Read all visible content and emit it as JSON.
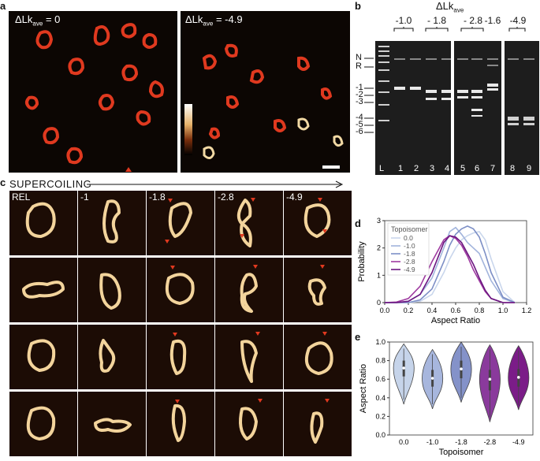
{
  "panel_a": {
    "letter": "a",
    "left_label_prefix": "ΔLk",
    "left_label_sub": "ave",
    "left_label_value": " = 0",
    "right_label_prefix": "ΔLk",
    "right_label_sub": "ave",
    "right_label_value": " = -4.9"
  },
  "panel_b": {
    "letter": "b",
    "title_prefix": "ΔLk",
    "title_sub": "ave",
    "group_labels": [
      "-1.0",
      "- 1.8",
      "- 2.8",
      "-1.6",
      "-4.9"
    ],
    "band_labels": [
      "N",
      "R",
      "-1",
      "-2",
      "-3",
      "-4",
      "-5",
      "-6"
    ],
    "lane_labels": [
      "L",
      "1",
      "2",
      "3",
      "4",
      "5",
      "6",
      "7",
      "8",
      "9"
    ]
  },
  "panel_c": {
    "letter": "c",
    "header": "SUPERCOILING",
    "column_labels": [
      "REL",
      "-1",
      "-1.8",
      "-2.8",
      "-4.9"
    ]
  },
  "panel_d": {
    "letter": "d",
    "legend_title": "Topoisomer",
    "xlabel": "Aspect Ratio",
    "ylabel": "Probability",
    "x_ticks": [
      "0.0",
      "0.2",
      "0.4",
      "0.6",
      "0.8",
      "1.0",
      "1.2"
    ],
    "y_ticks": [
      "0",
      "1",
      "2",
      "3"
    ]
  },
  "panel_e": {
    "letter": "e",
    "xlabel": "Topoisomer",
    "ylabel": "Aspect Ratio",
    "y_ticks": [
      "0.0",
      "0.2",
      "0.4",
      "0.6",
      "0.8",
      "1.0"
    ]
  },
  "chart_data": [
    {
      "type": "line",
      "xlabel": "Aspect Ratio",
      "ylabel": "Probability",
      "xlim": [
        0.0,
        1.2
      ],
      "ylim": [
        0,
        3
      ],
      "x": [
        0.0,
        0.1,
        0.2,
        0.3,
        0.4,
        0.5,
        0.55,
        0.6,
        0.65,
        0.7,
        0.75,
        0.8,
        0.85,
        0.9,
        1.0,
        1.1
      ],
      "series": [
        {
          "name": "0.0",
          "color": "#c9d6ec",
          "values": [
            0,
            0,
            0,
            0.05,
            0.3,
            1.1,
            1.6,
            2.0,
            2.3,
            2.45,
            2.55,
            2.6,
            2.3,
            1.6,
            0.4,
            0
          ]
        },
        {
          "name": "-1.0",
          "color": "#a2b4dc",
          "values": [
            0,
            0,
            0.05,
            0.3,
            0.9,
            2.0,
            2.6,
            2.75,
            2.5,
            2.2,
            2.0,
            1.8,
            1.3,
            0.8,
            0.15,
            0
          ]
        },
        {
          "name": "-1.8",
          "color": "#7d8fc6",
          "values": [
            0,
            0,
            0,
            0.1,
            0.5,
            1.5,
            2.1,
            2.5,
            2.7,
            2.8,
            2.7,
            2.4,
            1.8,
            1.1,
            0.2,
            0
          ]
        },
        {
          "name": "-2.8",
          "color": "#9e3aa0",
          "values": [
            0,
            0.02,
            0.15,
            0.6,
            1.5,
            2.3,
            2.45,
            2.35,
            2.1,
            1.7,
            1.2,
            0.8,
            0.4,
            0.15,
            0,
            0
          ]
        },
        {
          "name": "-4.9",
          "color": "#6b1680",
          "values": [
            0,
            0,
            0.05,
            0.3,
            1.1,
            2.2,
            2.45,
            2.4,
            2.2,
            1.8,
            1.4,
            0.9,
            0.45,
            0.15,
            0,
            0
          ]
        }
      ],
      "legend": "top-left"
    },
    {
      "type": "violin",
      "xlabel": "Topoisomer",
      "ylabel": "Aspect Ratio",
      "ylim": [
        0.0,
        1.0
      ],
      "categories": [
        "0.0",
        "-1.0",
        "-1.8",
        "-2.8",
        "-4.9"
      ],
      "series": [
        {
          "category": "0.0",
          "color": "#c6d4ea",
          "median": 0.72,
          "q1": 0.63,
          "q3": 0.8,
          "min": 0.33,
          "max": 0.98
        },
        {
          "category": "-1.0",
          "color": "#a7b6dd",
          "median": 0.61,
          "q1": 0.52,
          "q3": 0.7,
          "min": 0.28,
          "max": 0.92
        },
        {
          "category": "-1.8",
          "color": "#8492c9",
          "median": 0.71,
          "q1": 0.61,
          "q3": 0.8,
          "min": 0.35,
          "max": 1.0
        },
        {
          "category": "-2.8",
          "color": "#8a3a9c",
          "median": 0.6,
          "q1": 0.48,
          "q3": 0.7,
          "min": 0.14,
          "max": 0.97
        },
        {
          "category": "-4.9",
          "color": "#7b1c88",
          "median": 0.62,
          "q1": 0.52,
          "q3": 0.71,
          "min": 0.27,
          "max": 0.96
        }
      ]
    }
  ]
}
